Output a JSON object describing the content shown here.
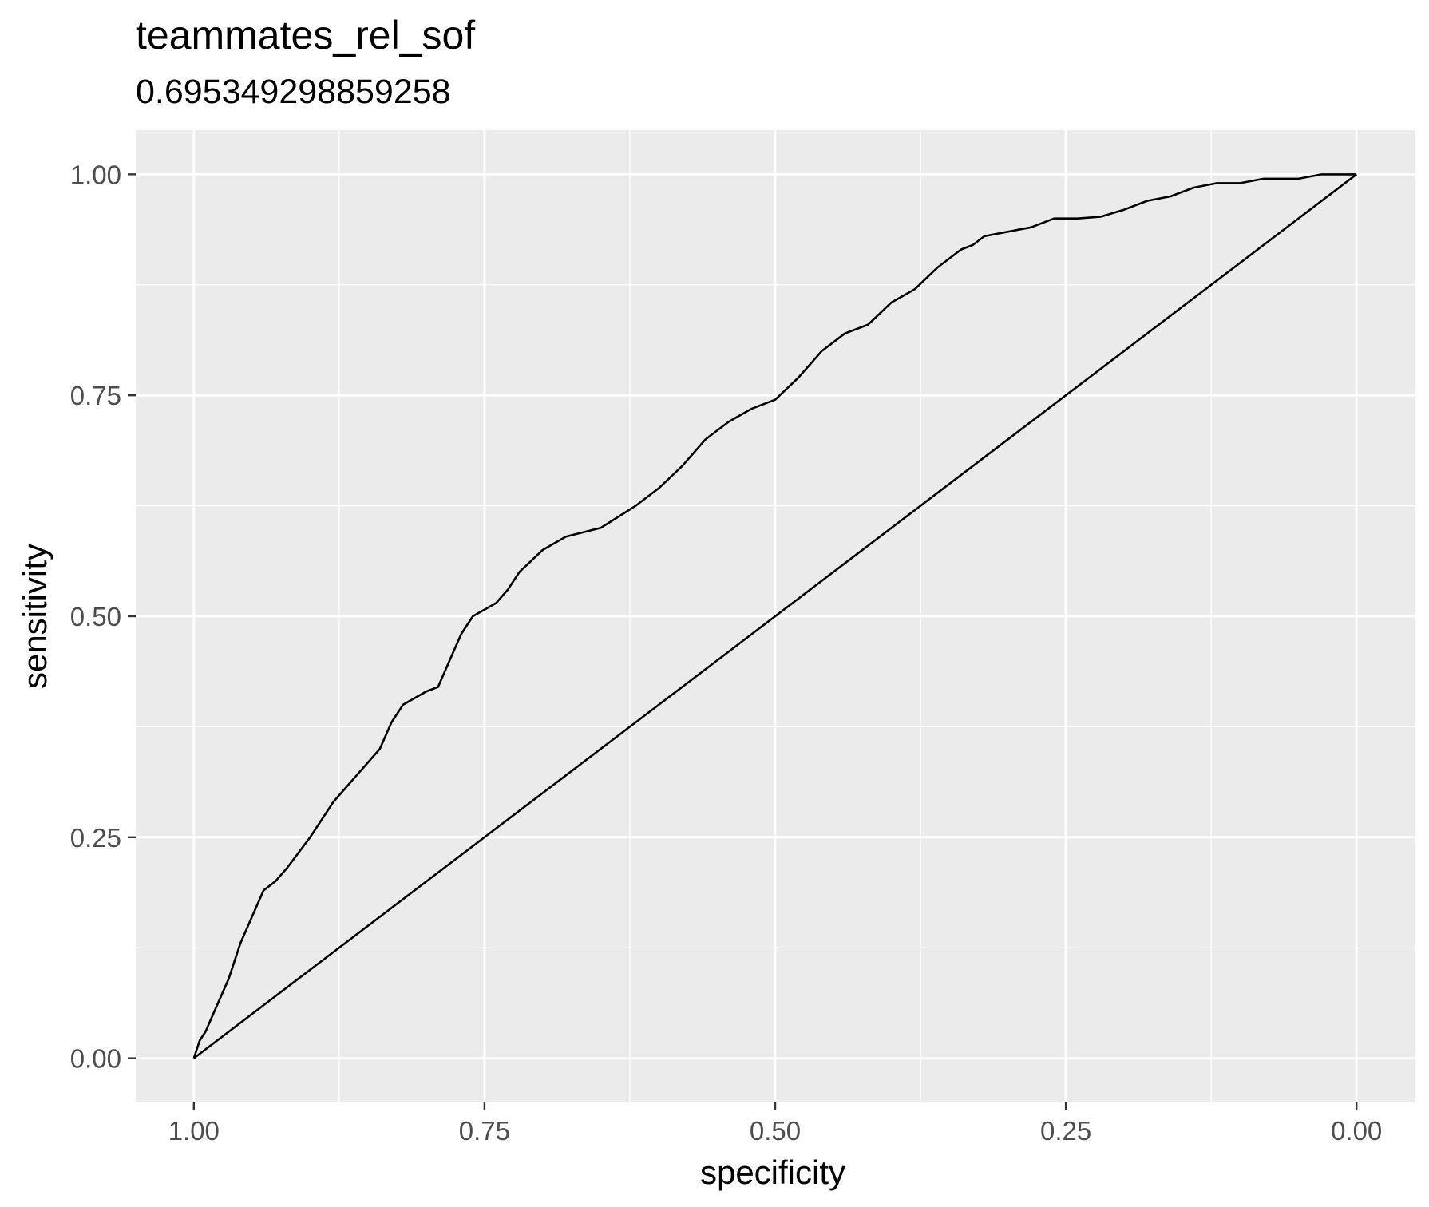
{
  "chart_data": {
    "type": "line",
    "title": "teammates_rel_sof",
    "subtitle": "0.695349298859258",
    "xlabel": "specificity",
    "ylabel": "sensitivity",
    "x_reversed": true,
    "xlim": [
      1.05,
      -0.05
    ],
    "ylim": [
      -0.05,
      1.05
    ],
    "x_ticks": [
      1.0,
      0.75,
      0.5,
      0.25,
      0.0
    ],
    "x_tick_labels": [
      "1.00",
      "0.75",
      "0.50",
      "0.25",
      "0.00"
    ],
    "y_ticks": [
      0.0,
      0.25,
      0.5,
      0.75,
      1.0
    ],
    "y_tick_labels": [
      "0.00",
      "0.25",
      "0.50",
      "0.75",
      "1.00"
    ],
    "grid": true,
    "background": "#EBEBEB",
    "grid_color": "#FFFFFF",
    "line_color": "#000000",
    "series": [
      {
        "x": [
          1.0,
          0.995,
          0.99,
          0.98,
          0.97,
          0.96,
          0.95,
          0.94,
          0.93,
          0.92,
          0.9,
          0.88,
          0.86,
          0.84,
          0.83,
          0.82,
          0.8,
          0.79,
          0.78,
          0.77,
          0.76,
          0.74,
          0.73,
          0.72,
          0.7,
          0.68,
          0.65,
          0.62,
          0.6,
          0.58,
          0.56,
          0.54,
          0.52,
          0.5,
          0.48,
          0.46,
          0.44,
          0.42,
          0.4,
          0.38,
          0.36,
          0.34,
          0.33,
          0.32,
          0.3,
          0.28,
          0.26,
          0.24,
          0.22,
          0.2,
          0.18,
          0.16,
          0.14,
          0.12,
          0.1,
          0.08,
          0.05,
          0.03,
          0.0
        ],
        "y": [
          0.0,
          0.02,
          0.03,
          0.06,
          0.09,
          0.13,
          0.16,
          0.19,
          0.2,
          0.215,
          0.25,
          0.29,
          0.32,
          0.35,
          0.38,
          0.4,
          0.415,
          0.42,
          0.45,
          0.48,
          0.5,
          0.515,
          0.53,
          0.55,
          0.575,
          0.59,
          0.6,
          0.625,
          0.645,
          0.67,
          0.7,
          0.72,
          0.735,
          0.745,
          0.77,
          0.8,
          0.82,
          0.83,
          0.855,
          0.87,
          0.895,
          0.915,
          0.92,
          0.93,
          0.935,
          0.94,
          0.95,
          0.95,
          0.952,
          0.96,
          0.97,
          0.975,
          0.985,
          0.99,
          0.99,
          0.995,
          0.995,
          1.0,
          1.0
        ]
      },
      {
        "x": [
          1.0,
          0.0
        ],
        "y": [
          0.0,
          1.0
        ]
      }
    ]
  }
}
